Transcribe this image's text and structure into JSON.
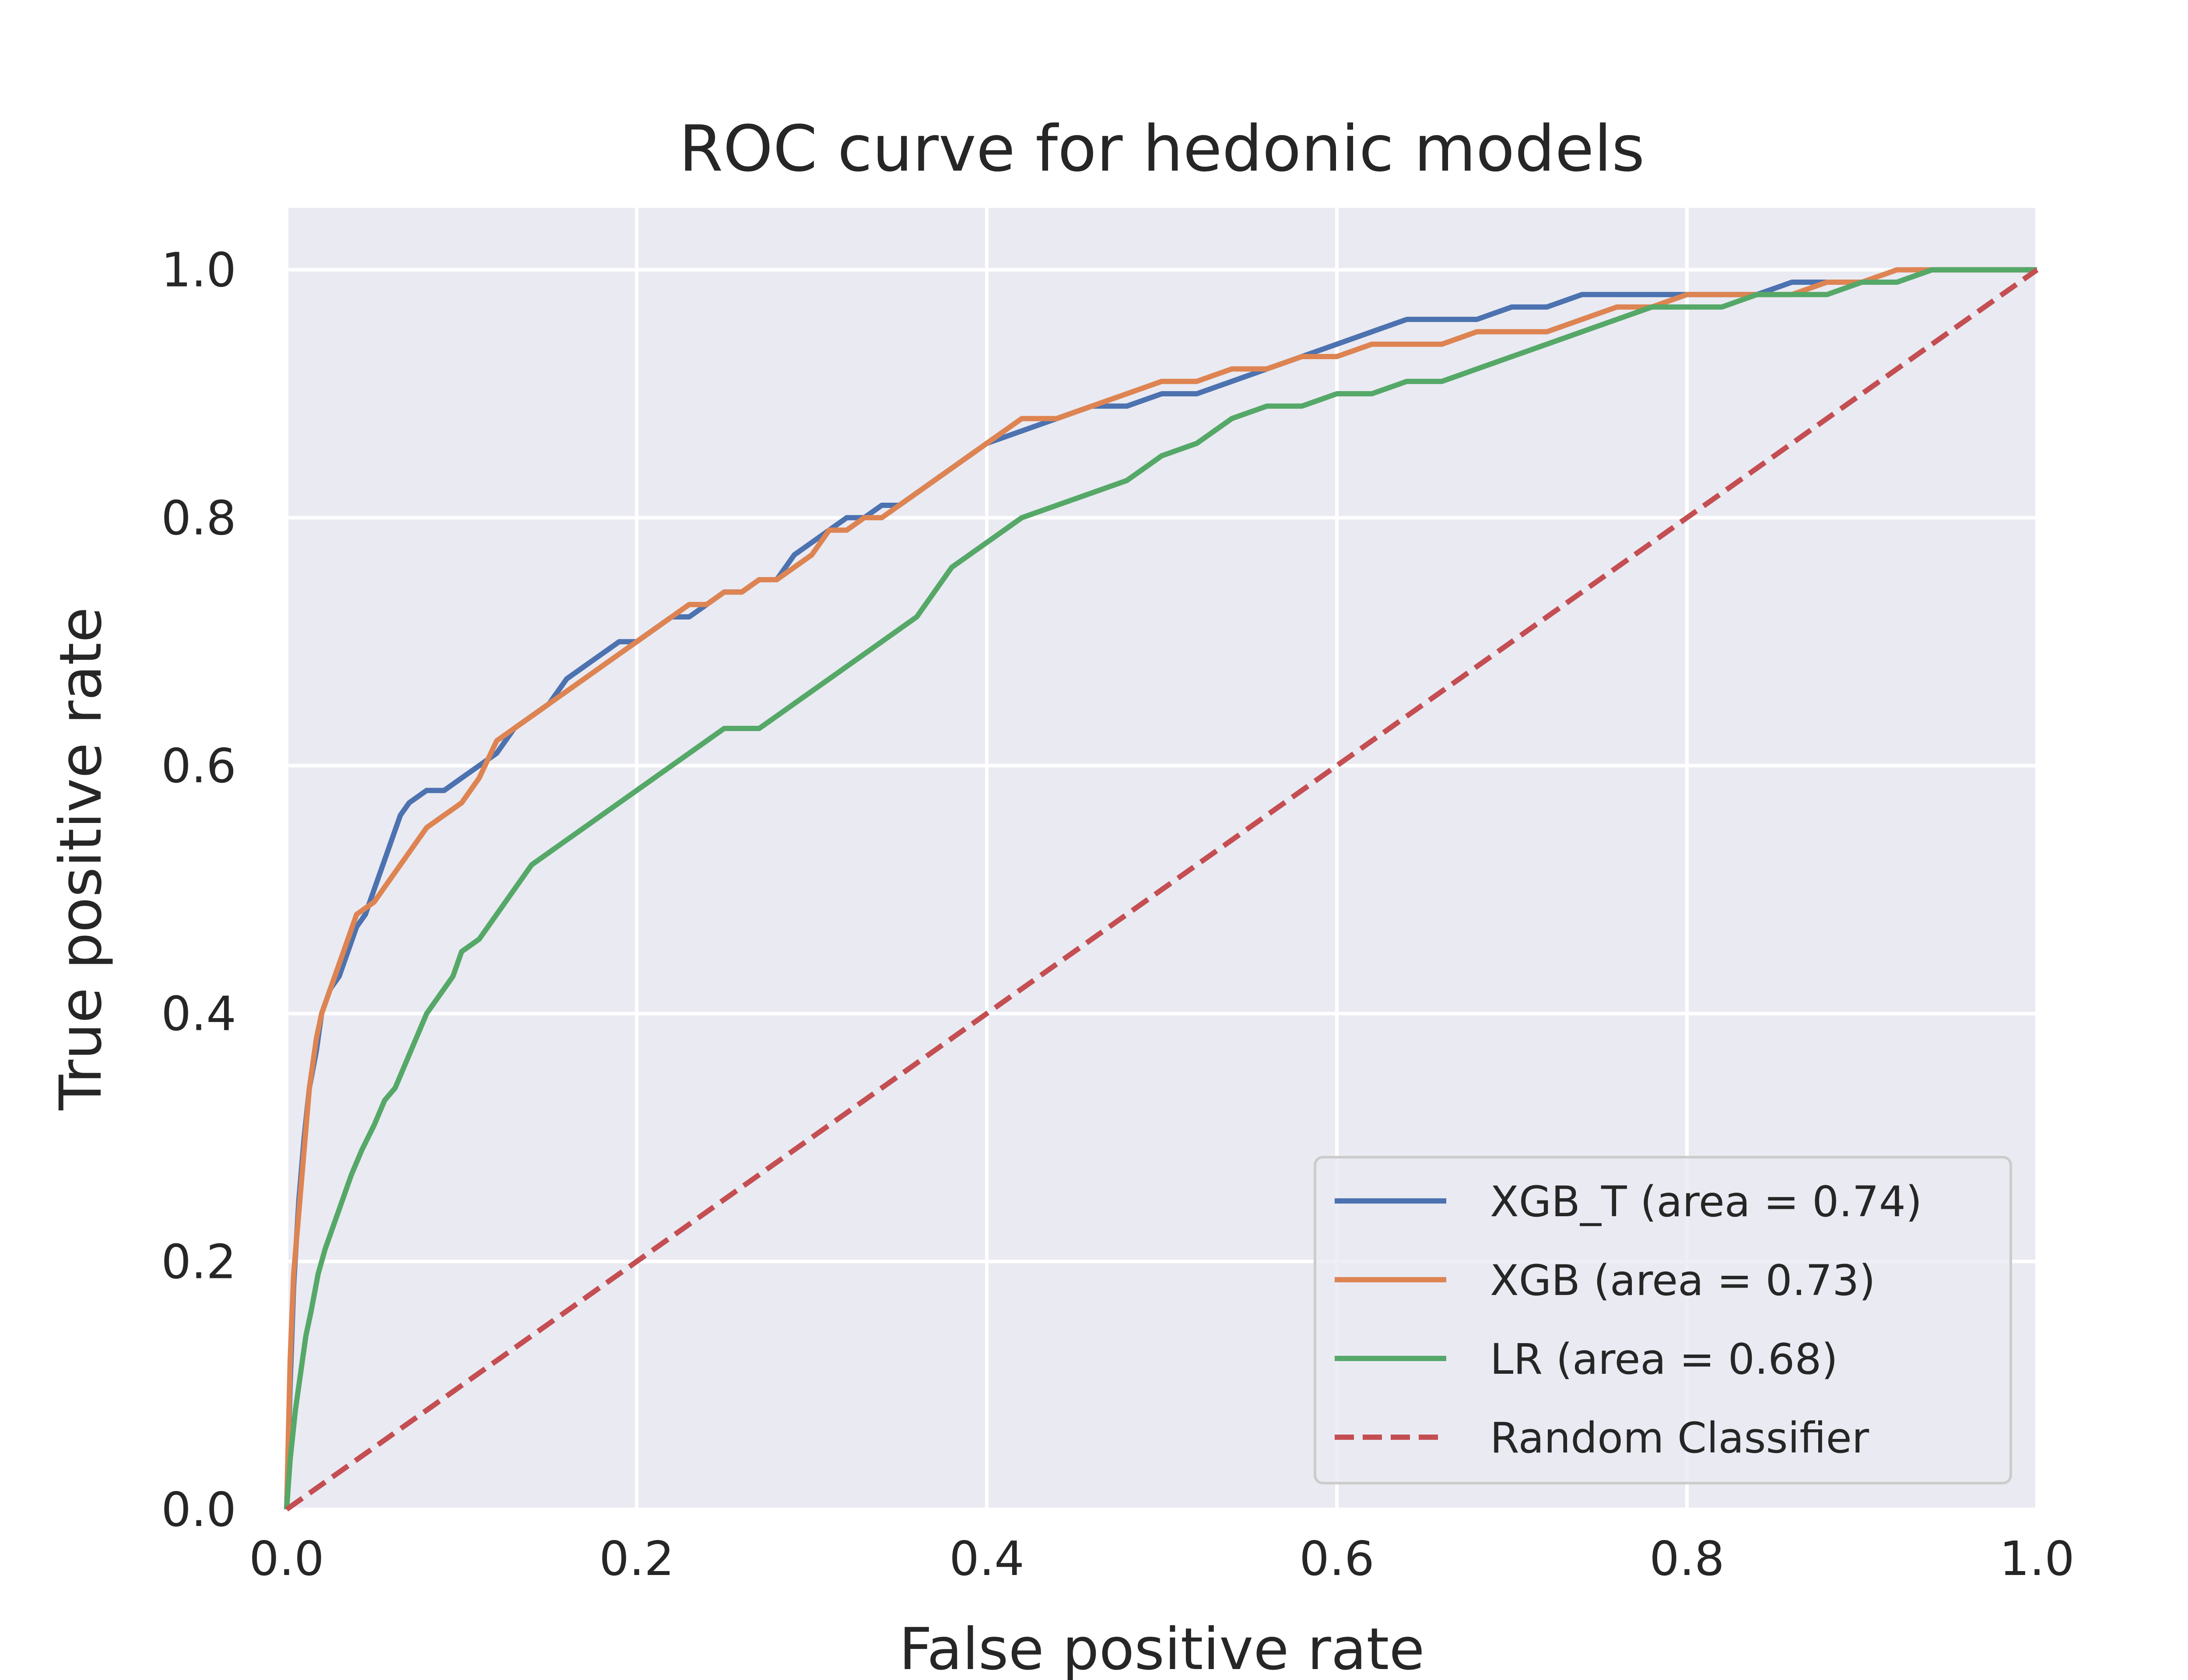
{
  "chart_data": {
    "type": "line",
    "title": "ROC curve for hedonic models",
    "xlabel": "False positive rate",
    "ylabel": "True positive rate",
    "xlim": [
      0.0,
      1.0
    ],
    "ylim": [
      0.0,
      1.05
    ],
    "x_ticks": [
      "0.0",
      "0.2",
      "0.4",
      "0.6",
      "0.8",
      "1.0"
    ],
    "y_ticks": [
      "0.0",
      "0.2",
      "0.4",
      "0.6",
      "0.8",
      "1.0"
    ],
    "grid": true,
    "legend_position": "bottom-right",
    "background_color": "#eaeaf2",
    "series": [
      {
        "name": "XGB_T (area = 0.74)",
        "color": "#4c72b0",
        "dash": "solid",
        "points": [
          [
            0.0,
            0.0
          ],
          [
            0.002,
            0.1
          ],
          [
            0.004,
            0.18
          ],
          [
            0.007,
            0.25
          ],
          [
            0.01,
            0.3
          ],
          [
            0.013,
            0.34
          ],
          [
            0.017,
            0.37
          ],
          [
            0.02,
            0.4
          ],
          [
            0.025,
            0.42
          ],
          [
            0.03,
            0.43
          ],
          [
            0.035,
            0.45
          ],
          [
            0.04,
            0.47
          ],
          [
            0.045,
            0.48
          ],
          [
            0.05,
            0.5
          ],
          [
            0.055,
            0.52
          ],
          [
            0.06,
            0.54
          ],
          [
            0.065,
            0.56
          ],
          [
            0.07,
            0.57
          ],
          [
            0.08,
            0.58
          ],
          [
            0.09,
            0.58
          ],
          [
            0.1,
            0.59
          ],
          [
            0.11,
            0.6
          ],
          [
            0.12,
            0.61
          ],
          [
            0.13,
            0.63
          ],
          [
            0.14,
            0.64
          ],
          [
            0.15,
            0.65
          ],
          [
            0.16,
            0.67
          ],
          [
            0.17,
            0.68
          ],
          [
            0.18,
            0.69
          ],
          [
            0.19,
            0.7
          ],
          [
            0.2,
            0.7
          ],
          [
            0.21,
            0.71
          ],
          [
            0.22,
            0.72
          ],
          [
            0.23,
            0.72
          ],
          [
            0.24,
            0.73
          ],
          [
            0.25,
            0.74
          ],
          [
            0.26,
            0.74
          ],
          [
            0.27,
            0.75
          ],
          [
            0.28,
            0.75
          ],
          [
            0.29,
            0.77
          ],
          [
            0.3,
            0.78
          ],
          [
            0.31,
            0.79
          ],
          [
            0.32,
            0.8
          ],
          [
            0.33,
            0.8
          ],
          [
            0.34,
            0.81
          ],
          [
            0.35,
            0.81
          ],
          [
            0.36,
            0.82
          ],
          [
            0.37,
            0.83
          ],
          [
            0.38,
            0.84
          ],
          [
            0.39,
            0.85
          ],
          [
            0.4,
            0.86
          ],
          [
            0.42,
            0.87
          ],
          [
            0.44,
            0.88
          ],
          [
            0.46,
            0.89
          ],
          [
            0.48,
            0.89
          ],
          [
            0.5,
            0.9
          ],
          [
            0.52,
            0.9
          ],
          [
            0.54,
            0.91
          ],
          [
            0.56,
            0.92
          ],
          [
            0.58,
            0.93
          ],
          [
            0.6,
            0.94
          ],
          [
            0.62,
            0.95
          ],
          [
            0.64,
            0.96
          ],
          [
            0.66,
            0.96
          ],
          [
            0.68,
            0.96
          ],
          [
            0.7,
            0.97
          ],
          [
            0.72,
            0.97
          ],
          [
            0.74,
            0.98
          ],
          [
            0.76,
            0.98
          ],
          [
            0.78,
            0.98
          ],
          [
            0.8,
            0.98
          ],
          [
            0.82,
            0.98
          ],
          [
            0.84,
            0.98
          ],
          [
            0.86,
            0.99
          ],
          [
            0.88,
            0.99
          ],
          [
            0.9,
            0.99
          ],
          [
            0.92,
            0.99
          ],
          [
            0.94,
            1.0
          ],
          [
            0.96,
            1.0
          ],
          [
            0.98,
            1.0
          ],
          [
            1.0,
            1.0
          ]
        ]
      },
      {
        "name": "XGB (area = 0.73)",
        "color": "#dd8452",
        "dash": "solid",
        "points": [
          [
            0.0,
            0.0
          ],
          [
            0.002,
            0.12
          ],
          [
            0.004,
            0.19
          ],
          [
            0.007,
            0.24
          ],
          [
            0.01,
            0.29
          ],
          [
            0.013,
            0.34
          ],
          [
            0.017,
            0.38
          ],
          [
            0.02,
            0.4
          ],
          [
            0.025,
            0.42
          ],
          [
            0.03,
            0.44
          ],
          [
            0.035,
            0.46
          ],
          [
            0.04,
            0.48
          ],
          [
            0.05,
            0.49
          ],
          [
            0.055,
            0.5
          ],
          [
            0.06,
            0.51
          ],
          [
            0.07,
            0.53
          ],
          [
            0.08,
            0.55
          ],
          [
            0.09,
            0.56
          ],
          [
            0.1,
            0.57
          ],
          [
            0.11,
            0.59
          ],
          [
            0.12,
            0.62
          ],
          [
            0.13,
            0.63
          ],
          [
            0.14,
            0.64
          ],
          [
            0.15,
            0.65
          ],
          [
            0.16,
            0.66
          ],
          [
            0.17,
            0.67
          ],
          [
            0.18,
            0.68
          ],
          [
            0.19,
            0.69
          ],
          [
            0.2,
            0.7
          ],
          [
            0.21,
            0.71
          ],
          [
            0.22,
            0.72
          ],
          [
            0.23,
            0.73
          ],
          [
            0.24,
            0.73
          ],
          [
            0.25,
            0.74
          ],
          [
            0.26,
            0.74
          ],
          [
            0.27,
            0.75
          ],
          [
            0.28,
            0.75
          ],
          [
            0.29,
            0.76
          ],
          [
            0.3,
            0.77
          ],
          [
            0.31,
            0.79
          ],
          [
            0.32,
            0.79
          ],
          [
            0.33,
            0.8
          ],
          [
            0.34,
            0.8
          ],
          [
            0.35,
            0.81
          ],
          [
            0.36,
            0.82
          ],
          [
            0.37,
            0.83
          ],
          [
            0.38,
            0.84
          ],
          [
            0.39,
            0.85
          ],
          [
            0.4,
            0.86
          ],
          [
            0.41,
            0.87
          ],
          [
            0.42,
            0.88
          ],
          [
            0.44,
            0.88
          ],
          [
            0.46,
            0.89
          ],
          [
            0.48,
            0.9
          ],
          [
            0.5,
            0.91
          ],
          [
            0.52,
            0.91
          ],
          [
            0.54,
            0.92
          ],
          [
            0.56,
            0.92
          ],
          [
            0.58,
            0.93
          ],
          [
            0.6,
            0.93
          ],
          [
            0.62,
            0.94
          ],
          [
            0.64,
            0.94
          ],
          [
            0.66,
            0.94
          ],
          [
            0.68,
            0.95
          ],
          [
            0.7,
            0.95
          ],
          [
            0.72,
            0.95
          ],
          [
            0.74,
            0.96
          ],
          [
            0.76,
            0.97
          ],
          [
            0.78,
            0.97
          ],
          [
            0.8,
            0.98
          ],
          [
            0.82,
            0.98
          ],
          [
            0.84,
            0.98
          ],
          [
            0.86,
            0.98
          ],
          [
            0.88,
            0.99
          ],
          [
            0.9,
            0.99
          ],
          [
            0.92,
            1.0
          ],
          [
            0.94,
            1.0
          ],
          [
            0.96,
            1.0
          ],
          [
            0.98,
            1.0
          ],
          [
            1.0,
            1.0
          ]
        ]
      },
      {
        "name": "LR (area = 0.68)",
        "color": "#55a868",
        "dash": "solid",
        "points": [
          [
            0.0,
            0.0
          ],
          [
            0.002,
            0.04
          ],
          [
            0.005,
            0.08
          ],
          [
            0.008,
            0.11
          ],
          [
            0.011,
            0.14
          ],
          [
            0.014,
            0.16
          ],
          [
            0.018,
            0.19
          ],
          [
            0.022,
            0.21
          ],
          [
            0.027,
            0.23
          ],
          [
            0.032,
            0.25
          ],
          [
            0.037,
            0.27
          ],
          [
            0.043,
            0.29
          ],
          [
            0.05,
            0.31
          ],
          [
            0.056,
            0.33
          ],
          [
            0.062,
            0.34
          ],
          [
            0.068,
            0.36
          ],
          [
            0.074,
            0.38
          ],
          [
            0.08,
            0.4
          ],
          [
            0.085,
            0.41
          ],
          [
            0.09,
            0.42
          ],
          [
            0.095,
            0.43
          ],
          [
            0.1,
            0.45
          ],
          [
            0.11,
            0.46
          ],
          [
            0.12,
            0.48
          ],
          [
            0.13,
            0.5
          ],
          [
            0.14,
            0.52
          ],
          [
            0.15,
            0.53
          ],
          [
            0.16,
            0.54
          ],
          [
            0.17,
            0.55
          ],
          [
            0.18,
            0.56
          ],
          [
            0.19,
            0.57
          ],
          [
            0.2,
            0.58
          ],
          [
            0.21,
            0.59
          ],
          [
            0.22,
            0.6
          ],
          [
            0.23,
            0.61
          ],
          [
            0.24,
            0.62
          ],
          [
            0.25,
            0.63
          ],
          [
            0.26,
            0.63
          ],
          [
            0.27,
            0.63
          ],
          [
            0.28,
            0.64
          ],
          [
            0.29,
            0.65
          ],
          [
            0.3,
            0.66
          ],
          [
            0.31,
            0.67
          ],
          [
            0.32,
            0.68
          ],
          [
            0.33,
            0.69
          ],
          [
            0.34,
            0.7
          ],
          [
            0.35,
            0.71
          ],
          [
            0.36,
            0.72
          ],
          [
            0.37,
            0.74
          ],
          [
            0.38,
            0.76
          ],
          [
            0.39,
            0.77
          ],
          [
            0.4,
            0.78
          ],
          [
            0.41,
            0.79
          ],
          [
            0.42,
            0.8
          ],
          [
            0.44,
            0.81
          ],
          [
            0.46,
            0.82
          ],
          [
            0.48,
            0.83
          ],
          [
            0.5,
            0.85
          ],
          [
            0.52,
            0.86
          ],
          [
            0.54,
            0.88
          ],
          [
            0.56,
            0.89
          ],
          [
            0.58,
            0.89
          ],
          [
            0.6,
            0.9
          ],
          [
            0.62,
            0.9
          ],
          [
            0.64,
            0.91
          ],
          [
            0.66,
            0.91
          ],
          [
            0.68,
            0.92
          ],
          [
            0.7,
            0.93
          ],
          [
            0.72,
            0.94
          ],
          [
            0.74,
            0.95
          ],
          [
            0.76,
            0.96
          ],
          [
            0.78,
            0.97
          ],
          [
            0.8,
            0.97
          ],
          [
            0.82,
            0.97
          ],
          [
            0.84,
            0.98
          ],
          [
            0.86,
            0.98
          ],
          [
            0.88,
            0.98
          ],
          [
            0.9,
            0.99
          ],
          [
            0.92,
            0.99
          ],
          [
            0.94,
            1.0
          ],
          [
            0.96,
            1.0
          ],
          [
            0.98,
            1.0
          ],
          [
            1.0,
            1.0
          ]
        ]
      },
      {
        "name": "Random Classifier",
        "color": "#c44e52",
        "dash": "dashed",
        "points": [
          [
            0.0,
            0.0
          ],
          [
            1.0,
            1.0
          ]
        ]
      }
    ]
  }
}
